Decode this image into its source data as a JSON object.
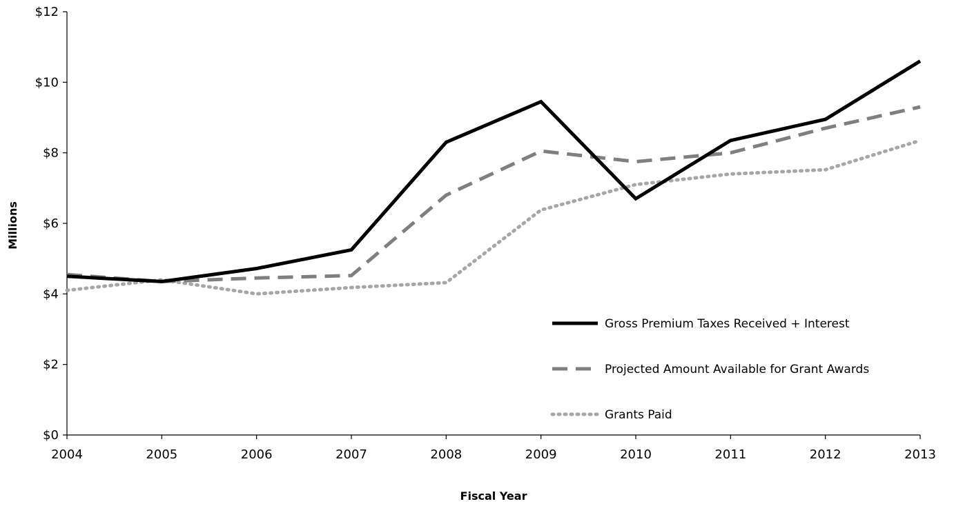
{
  "chart_data": {
    "type": "line",
    "xlabel": "Fiscal Year",
    "ylabel": "Millions",
    "x": [
      "2004",
      "2005",
      "2006",
      "2007",
      "2008",
      "2009",
      "2010",
      "2011",
      "2012",
      "2013"
    ],
    "ylim": [
      0,
      12
    ],
    "yticks": [
      0,
      2,
      4,
      6,
      8,
      10,
      12
    ],
    "ytick_labels": [
      "$0",
      "$2",
      "$4",
      "$6",
      "$8",
      "$10",
      "$12"
    ],
    "grid": false,
    "legend_position": "bottom-right",
    "series": [
      {
        "name": "Gross Premium Taxes Received + Interest",
        "values": [
          4.5,
          4.35,
          4.72,
          5.25,
          8.3,
          9.45,
          6.7,
          8.35,
          8.95,
          10.6
        ],
        "color": "#000000",
        "style": "solid"
      },
      {
        "name": "Projected Amount Available for Grant Awards",
        "values": [
          4.55,
          4.35,
          4.45,
          4.52,
          6.8,
          8.05,
          7.75,
          8.0,
          8.7,
          9.3
        ],
        "color": "#7f7f7f",
        "style": "dashed"
      },
      {
        "name": "Grants Paid",
        "values": [
          4.1,
          4.4,
          4.0,
          4.18,
          4.32,
          6.38,
          7.1,
          7.4,
          7.52,
          8.35
        ],
        "color": "#a6a6a6",
        "style": "dotted"
      }
    ]
  }
}
